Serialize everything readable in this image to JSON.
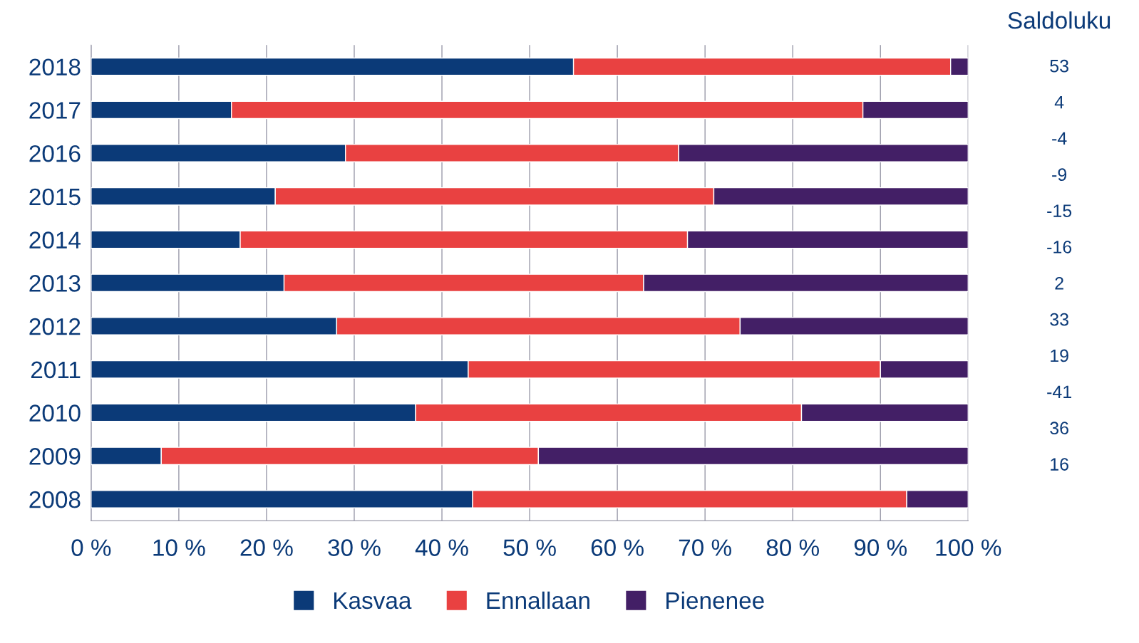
{
  "chart_data": {
    "type": "bar",
    "orientation": "horizontal",
    "stacked": true,
    "categories": [
      "2018",
      "2017",
      "2016",
      "2015",
      "2014",
      "2013",
      "2012",
      "2011",
      "2010",
      "2009",
      "2008"
    ],
    "series": [
      {
        "name": "Kasvaa",
        "color": "#0b3a78",
        "values": [
          55,
          16,
          29,
          21,
          17,
          22,
          28,
          43,
          37,
          8,
          43.5
        ]
      },
      {
        "name": "Ennallaan",
        "color": "#e94141",
        "values": [
          43,
          72,
          38,
          50,
          51,
          41,
          46,
          47,
          44,
          43,
          49.5
        ]
      },
      {
        "name": "Pienenee",
        "color": "#431f66",
        "values": [
          2,
          12,
          33,
          29,
          32,
          37,
          26,
          10,
          19,
          49,
          7
        ]
      }
    ],
    "xlim": [
      0,
      100
    ],
    "xticks": [
      {
        "value": 0,
        "label": "0 %"
      },
      {
        "value": 10,
        "label": "10 %"
      },
      {
        "value": 20,
        "label": "20 %"
      },
      {
        "value": 30,
        "label": "30 %"
      },
      {
        "value": 40,
        "label": "40 %"
      },
      {
        "value": 50,
        "label": "50 %"
      },
      {
        "value": 60,
        "label": "60 %"
      },
      {
        "value": 70,
        "label": "70 %"
      },
      {
        "value": 80,
        "label": "80 %"
      },
      {
        "value": 90,
        "label": "90 %"
      },
      {
        "value": 100,
        "label": "100 %"
      }
    ],
    "grid": "x",
    "legend": "bottom",
    "annotations": [
      "Saldoluku",
      "53",
      "4",
      "-4",
      "-9",
      "-15",
      "-16",
      "2",
      "33",
      "19",
      "-41",
      "36",
      "16"
    ]
  }
}
